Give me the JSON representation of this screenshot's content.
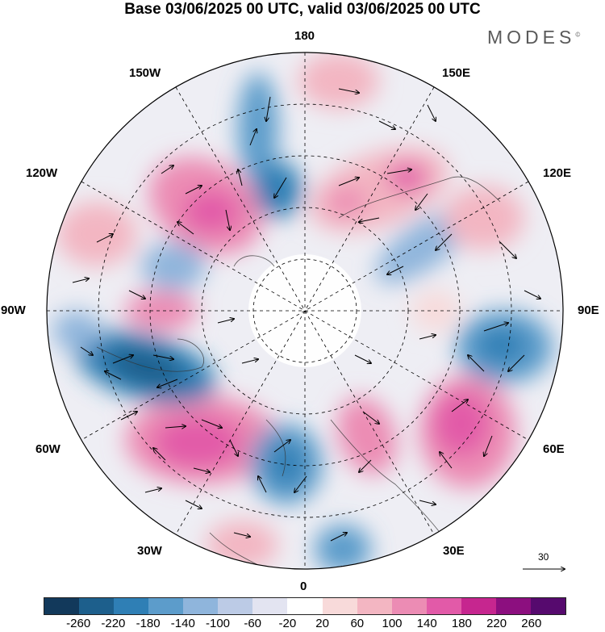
{
  "title": "Base 03/06/2025 00 UTC, valid 03/06/2025 00 UTC",
  "brand": "MODES",
  "brand_mark": "©",
  "longitude_labels": {
    "top": "180",
    "top_left": "150W",
    "top_right": "150E",
    "upper_left": "120W",
    "upper_right": "120E",
    "left": "90W",
    "right": "90E",
    "lower_left": "60W",
    "lower_right": "60E",
    "bottom_left": "30W",
    "bottom_right": "30E",
    "bottom": "0"
  },
  "reference_vector": {
    "label": "30"
  },
  "colorbar": {
    "colors": [
      "#12395b",
      "#1d5f8c",
      "#2f7fb5",
      "#5c9ccb",
      "#8fb5dc",
      "#bccbe6",
      "#e3e4f1",
      "#ffffff",
      "#f8dada",
      "#f3b6c2",
      "#ec8cb4",
      "#e25aa8",
      "#c6268f",
      "#8c0f7f",
      "#560a6e"
    ],
    "ticks": [
      "-260",
      "-220",
      "-180",
      "-140",
      "-100",
      "-60",
      "-20",
      "20",
      "60",
      "100",
      "140",
      "180",
      "220",
      "260"
    ]
  },
  "anomaly_centers": [
    {
      "lon_lat_hint": "60W",
      "sign": "positive",
      "value": 180
    },
    {
      "lon_lat_hint": "75W",
      "sign": "negative",
      "value": -240
    },
    {
      "lon_lat_hint": "135W",
      "sign": "positive",
      "value": 200
    },
    {
      "lon_lat_hint": "165W",
      "sign": "negative",
      "value": -180
    },
    {
      "lon_lat_hint": "150E",
      "sign": "positive",
      "value": 180
    },
    {
      "lon_lat_hint": "105E",
      "sign": "negative",
      "value": -140
    },
    {
      "lon_lat_hint": "75E",
      "sign": "negative",
      "value": -180
    },
    {
      "lon_lat_hint": "55E",
      "sign": "positive",
      "value": 200
    },
    {
      "lon_lat_hint": "5W",
      "sign": "negative",
      "value": -200
    },
    {
      "lon_lat_hint": "15E",
      "sign": "positive",
      "value": 140
    }
  ]
}
